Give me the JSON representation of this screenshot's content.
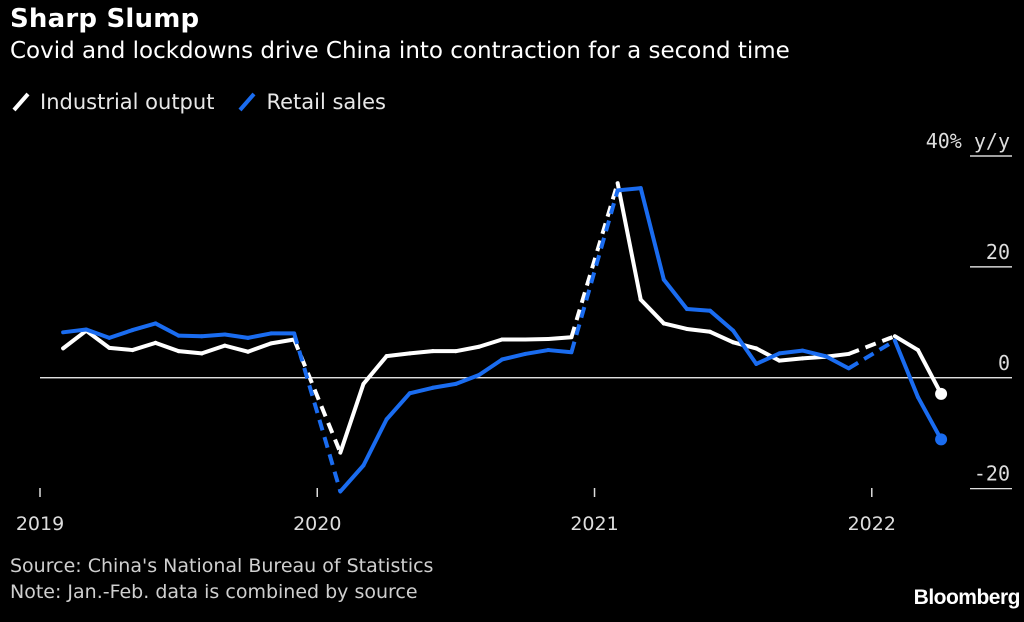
{
  "header": {
    "title": "Sharp Slump",
    "subtitle": "Covid and lockdowns drive China into contraction for a second time"
  },
  "legend": [
    {
      "label": "Industrial output",
      "color": "#ffffff"
    },
    {
      "label": "Retail sales",
      "color": "#1a6cf0"
    }
  ],
  "footer": {
    "source": "Source: China's National Bureau of Statistics",
    "note": "Note: Jan.-Feb. data is combined by source",
    "brand": "Bloomberg"
  },
  "chart_data": {
    "type": "line",
    "title": "Sharp Slump",
    "subtitle": "Covid and lockdowns drive China into contraction for a second time",
    "ylabel": "40% y/y",
    "y_ticks": [
      {
        "value": 40,
        "label": "40% y/y"
      },
      {
        "value": 20,
        "label": "20"
      },
      {
        "value": 0,
        "label": "0"
      },
      {
        "value": -20,
        "label": "-20"
      }
    ],
    "ylim": [
      -20.6,
      40
    ],
    "y_axis_position": "right",
    "x_ticks": [
      {
        "value": 2019.0,
        "label": "2019"
      },
      {
        "value": 2020.0,
        "label": "2020"
      },
      {
        "value": 2021.0,
        "label": "2021"
      },
      {
        "value": 2022.0,
        "label": "2022"
      }
    ],
    "xlim": [
      2019.0,
      2022.43
    ],
    "grid": false,
    "legend_position": "top-left",
    "series": [
      {
        "name": "Industrial output",
        "color": "#ffffff",
        "points": [
          [
            "2019-02",
            5.3
          ],
          [
            "2019-03",
            8.5
          ],
          [
            "2019-04",
            5.4
          ],
          [
            "2019-05",
            5.0
          ],
          [
            "2019-06",
            6.3
          ],
          [
            "2019-07",
            4.8
          ],
          [
            "2019-08",
            4.4
          ],
          [
            "2019-09",
            5.8
          ],
          [
            "2019-10",
            4.7
          ],
          [
            "2019-11",
            6.2
          ],
          [
            "2019-12",
            6.9
          ],
          [
            "2020-02",
            -13.5
          ],
          [
            "2020-03",
            -1.1
          ],
          [
            "2020-04",
            3.9
          ],
          [
            "2020-05",
            4.4
          ],
          [
            "2020-06",
            4.8
          ],
          [
            "2020-07",
            4.8
          ],
          [
            "2020-08",
            5.6
          ],
          [
            "2020-09",
            6.9
          ],
          [
            "2020-10",
            6.9
          ],
          [
            "2020-11",
            7.0
          ],
          [
            "2020-12",
            7.3
          ],
          [
            "2021-02",
            35.1
          ],
          [
            "2021-03",
            14.1
          ],
          [
            "2021-04",
            9.8
          ],
          [
            "2021-05",
            8.8
          ],
          [
            "2021-06",
            8.3
          ],
          [
            "2021-07",
            6.4
          ],
          [
            "2021-08",
            5.3
          ],
          [
            "2021-09",
            3.1
          ],
          [
            "2021-10",
            3.5
          ],
          [
            "2021-11",
            3.8
          ],
          [
            "2021-12",
            4.3
          ],
          [
            "2022-02",
            7.5
          ],
          [
            "2022-03",
            5.0
          ],
          [
            "2022-04",
            -2.9
          ]
        ]
      },
      {
        "name": "Retail sales",
        "color": "#1a6cf0",
        "points": [
          [
            "2019-02",
            8.2
          ],
          [
            "2019-03",
            8.7
          ],
          [
            "2019-04",
            7.2
          ],
          [
            "2019-05",
            8.6
          ],
          [
            "2019-06",
            9.8
          ],
          [
            "2019-07",
            7.6
          ],
          [
            "2019-08",
            7.5
          ],
          [
            "2019-09",
            7.8
          ],
          [
            "2019-10",
            7.2
          ],
          [
            "2019-11",
            8.0
          ],
          [
            "2019-12",
            8.0
          ],
          [
            "2020-02",
            -20.5
          ],
          [
            "2020-03",
            -15.8
          ],
          [
            "2020-04",
            -7.5
          ],
          [
            "2020-05",
            -2.8
          ],
          [
            "2020-06",
            -1.8
          ],
          [
            "2020-07",
            -1.1
          ],
          [
            "2020-08",
            0.5
          ],
          [
            "2020-09",
            3.3
          ],
          [
            "2020-10",
            4.3
          ],
          [
            "2020-11",
            5.0
          ],
          [
            "2020-12",
            4.6
          ],
          [
            "2021-02",
            33.8
          ],
          [
            "2021-03",
            34.2
          ],
          [
            "2021-04",
            17.7
          ],
          [
            "2021-05",
            12.4
          ],
          [
            "2021-06",
            12.1
          ],
          [
            "2021-07",
            8.5
          ],
          [
            "2021-08",
            2.5
          ],
          [
            "2021-09",
            4.4
          ],
          [
            "2021-10",
            4.9
          ],
          [
            "2021-11",
            3.9
          ],
          [
            "2021-12",
            1.7
          ],
          [
            "2022-02",
            6.7
          ],
          [
            "2022-03",
            -3.5
          ],
          [
            "2022-04",
            -11.1
          ]
        ]
      }
    ],
    "annotations": [
      "Jan.-Feb. values combined; segments into each February value are dashed"
    ]
  }
}
